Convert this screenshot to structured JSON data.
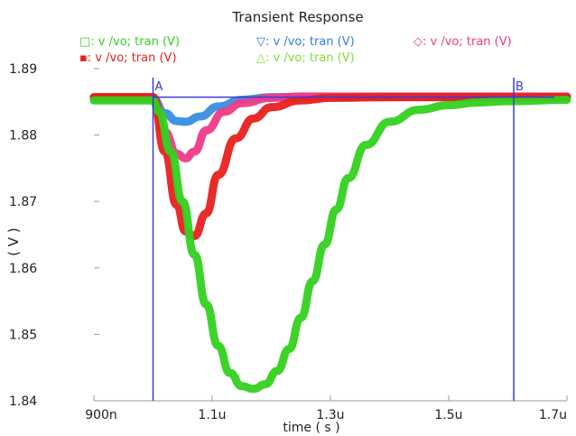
{
  "chart_data": {
    "type": "line",
    "title": "Transient Response",
    "xlabel": "time ( s )",
    "ylabel": "( V )",
    "xlim": [
      9e-07,
      1.7e-06
    ],
    "ylim": [
      1.84,
      1.89
    ],
    "x_ticks": [
      {
        "value": 9e-07,
        "label": "900n"
      },
      {
        "value": 1.1e-06,
        "label": "1.1u"
      },
      {
        "value": 1.3e-06,
        "label": "1.3u"
      },
      {
        "value": 1.5e-06,
        "label": "1.5u"
      },
      {
        "value": 1.7e-06,
        "label": "1.7u"
      }
    ],
    "y_ticks": [
      {
        "value": 1.89,
        "label": "1.89"
      },
      {
        "value": 1.88,
        "label": "1.88"
      },
      {
        "value": 1.87,
        "label": "1.87"
      },
      {
        "value": 1.86,
        "label": "1.86"
      },
      {
        "value": 1.85,
        "label": "1.85"
      },
      {
        "value": 1.84,
        "label": "1.84"
      }
    ],
    "legend": [
      {
        "marker": "□",
        "label": "v /vo; tran (V)",
        "color": "#33d11f"
      },
      {
        "marker": "▽",
        "label": "v /vo; tran (V)",
        "color": "#2f7fe0"
      },
      {
        "marker": "◇",
        "label": "v /vo; tran (V)",
        "color": "#ee3b88"
      },
      {
        "marker": "▪",
        "label": "v /vo; tran (V)",
        "color": "#e8201e"
      },
      {
        "marker": "△",
        "label": "v /vo; tran (V)",
        "color": "#7fe03a"
      }
    ],
    "cursors": [
      {
        "name": "A",
        "x": 1e-06,
        "color": "#3a3ad8"
      },
      {
        "name": "B",
        "x": 1.61e-06,
        "color": "#3a3ad8"
      }
    ],
    "series": [
      {
        "color": "#3a8de0",
        "x": [
          9e-07,
          1e-06,
          1.02e-06,
          1.04e-06,
          1.055e-06,
          1.08e-06,
          1.11e-06,
          1.15e-06,
          1.2e-06,
          1.25e-06,
          1.7e-06
        ],
        "y": [
          1.8855,
          1.8855,
          1.8833,
          1.8821,
          1.882,
          1.8828,
          1.8843,
          1.8853,
          1.8857,
          1.8857,
          1.8857
        ]
      },
      {
        "color": "#ee3b88",
        "x": [
          9e-07,
          1e-06,
          1.02e-06,
          1.04e-06,
          1.055e-06,
          1.07e-06,
          1.09e-06,
          1.12e-06,
          1.15e-06,
          1.2e-06,
          1.25e-06,
          1.3e-06,
          1.7e-06
        ],
        "y": [
          1.8857,
          1.8857,
          1.8805,
          1.8772,
          1.8765,
          1.8775,
          1.8807,
          1.8835,
          1.8848,
          1.8856,
          1.8858,
          1.8858,
          1.8858
        ]
      },
      {
        "color": "#e8201e",
        "x": [
          9e-07,
          1e-06,
          1.02e-06,
          1.04e-06,
          1.055e-06,
          1.07e-06,
          1.09e-06,
          1.11e-06,
          1.14e-06,
          1.17e-06,
          1.2e-06,
          1.25e-06,
          1.3e-06,
          1.4e-06,
          1.7e-06
        ],
        "y": [
          1.8857,
          1.8857,
          1.8775,
          1.8695,
          1.8655,
          1.8648,
          1.8682,
          1.874,
          1.8795,
          1.8825,
          1.8842,
          1.8852,
          1.8856,
          1.8857,
          1.8857
        ]
      },
      {
        "color": "#33d11f",
        "x": [
          9e-07,
          1e-06,
          1.01e-06,
          1.03e-06,
          1.05e-06,
          1.07e-06,
          1.09e-06,
          1.11e-06,
          1.13e-06,
          1.15e-06,
          1.17e-06,
          1.19e-06,
          1.21e-06,
          1.23e-06,
          1.25e-06,
          1.27e-06,
          1.29e-06,
          1.31e-06,
          1.33e-06,
          1.36e-06,
          1.4e-06,
          1.45e-06,
          1.5e-06,
          1.55e-06,
          1.6e-06,
          1.7e-06
        ],
        "y": [
          1.8852,
          1.8852,
          1.8835,
          1.8775,
          1.87,
          1.862,
          1.8545,
          1.8483,
          1.8442,
          1.8422,
          1.8418,
          1.8425,
          1.8445,
          1.8478,
          1.8525,
          1.858,
          1.8635,
          1.8688,
          1.8735,
          1.8785,
          1.882,
          1.8838,
          1.8845,
          1.8849,
          1.8851,
          1.8853
        ]
      }
    ]
  }
}
